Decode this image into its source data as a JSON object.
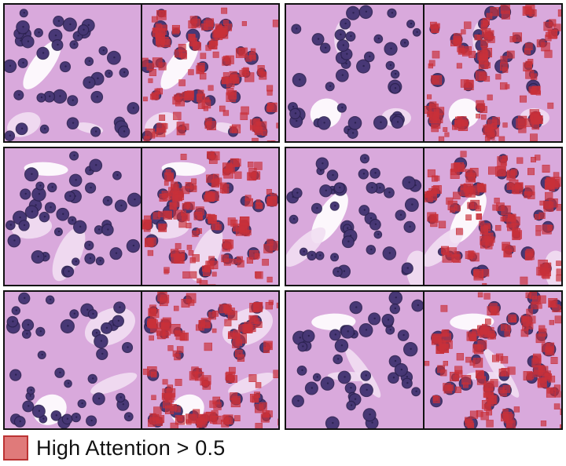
{
  "figure": {
    "rows": 3,
    "columns": 2,
    "pair_labels": [
      "tissue",
      "attention-overlay"
    ]
  },
  "colors": {
    "tissue_bg": "#d9a9dc",
    "tissue_light": "#f1def2",
    "nucleus": "#4a3a7a",
    "nucleus_dark": "#2b2150",
    "attention": "#c8303a",
    "attention_fill": "rgba(200,48,58,0.68)",
    "legend_swatch": "#e07a7a"
  },
  "legend": {
    "label": "High Attention > 0.5"
  }
}
